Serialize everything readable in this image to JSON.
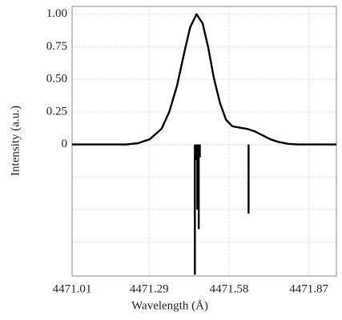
{
  "chart_data": {
    "type": "line",
    "xlabel": "Wavelength (Å)",
    "ylabel": "Intensity (a.u.)",
    "xlim": [
      4471.01,
      4471.97
    ],
    "ylim": [
      -1.01,
      1.06
    ],
    "xticks": [
      4471.01,
      4471.29,
      4471.58,
      4471.87
    ],
    "yticks": [
      {
        "value": 1,
        "label": "1.00"
      },
      {
        "value": 0.75,
        "label": "0.75"
      },
      {
        "value": 0.5,
        "label": "0.50"
      },
      {
        "value": 0.25,
        "label": "0.25"
      },
      0
    ],
    "ygrid": [
      -0.25,
      -0.5,
      -0.75
    ],
    "grid": true,
    "series": [
      {
        "kind": "line",
        "color": "#000000",
        "x": [
          4471.01,
          4471.208,
          4471.25,
          4471.292,
          4471.335,
          4471.363,
          4471.391,
          4471.419,
          4471.439,
          4471.462,
          4471.484,
          4471.504,
          4471.524,
          4471.547,
          4471.569,
          4471.592,
          4471.617,
          4471.645,
          4471.674,
          4471.702,
          4471.73,
          4471.758,
          4471.795,
          4471.829,
          4471.97
        ],
        "values": [
          0,
          0,
          0.01,
          0.04,
          0.12,
          0.25,
          0.45,
          0.72,
          0.9,
          1.0,
          0.93,
          0.75,
          0.52,
          0.32,
          0.19,
          0.14,
          0.13,
          0.12,
          0.1,
          0.07,
          0.04,
          0.02,
          0.005,
          0,
          0
        ]
      },
      {
        "kind": "stem",
        "color": "#000000",
        "x": [
          4471.456,
          4471.462,
          4471.465,
          4471.47,
          4471.474,
          4471.651
        ],
        "values": [
          -1.0,
          -0.12,
          -0.5,
          -0.65,
          -0.1,
          -0.53
        ]
      }
    ]
  }
}
